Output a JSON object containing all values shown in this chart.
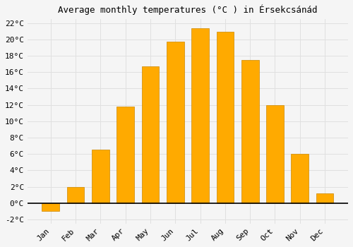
{
  "title": "Average monthly temperatures (°C ) in Érsekcsánád",
  "months": [
    "Jan",
    "Feb",
    "Mar",
    "Apr",
    "May",
    "Jun",
    "Jul",
    "Aug",
    "Sep",
    "Oct",
    "Nov",
    "Dec"
  ],
  "values": [
    -1.0,
    2.0,
    6.5,
    11.8,
    16.7,
    19.7,
    21.4,
    20.9,
    17.5,
    12.0,
    6.0,
    1.2
  ],
  "bar_color": "#FFAA00",
  "bar_edge_color": "#CC8800",
  "ylim": [
    -2.5,
    22.5
  ],
  "yticks": [
    -2,
    0,
    2,
    4,
    6,
    8,
    10,
    12,
    14,
    16,
    18,
    20,
    22
  ],
  "ytick_labels": [
    "-2°C",
    "0°C",
    "2°C",
    "4°C",
    "6°C",
    "8°C",
    "10°C",
    "12°C",
    "14°C",
    "16°C",
    "18°C",
    "20°C",
    "22°C"
  ],
  "background_color": "#F5F5F5",
  "grid_color": "#E0E0E0",
  "title_fontsize": 9,
  "tick_fontsize": 8,
  "xlabel_rotation": 45
}
